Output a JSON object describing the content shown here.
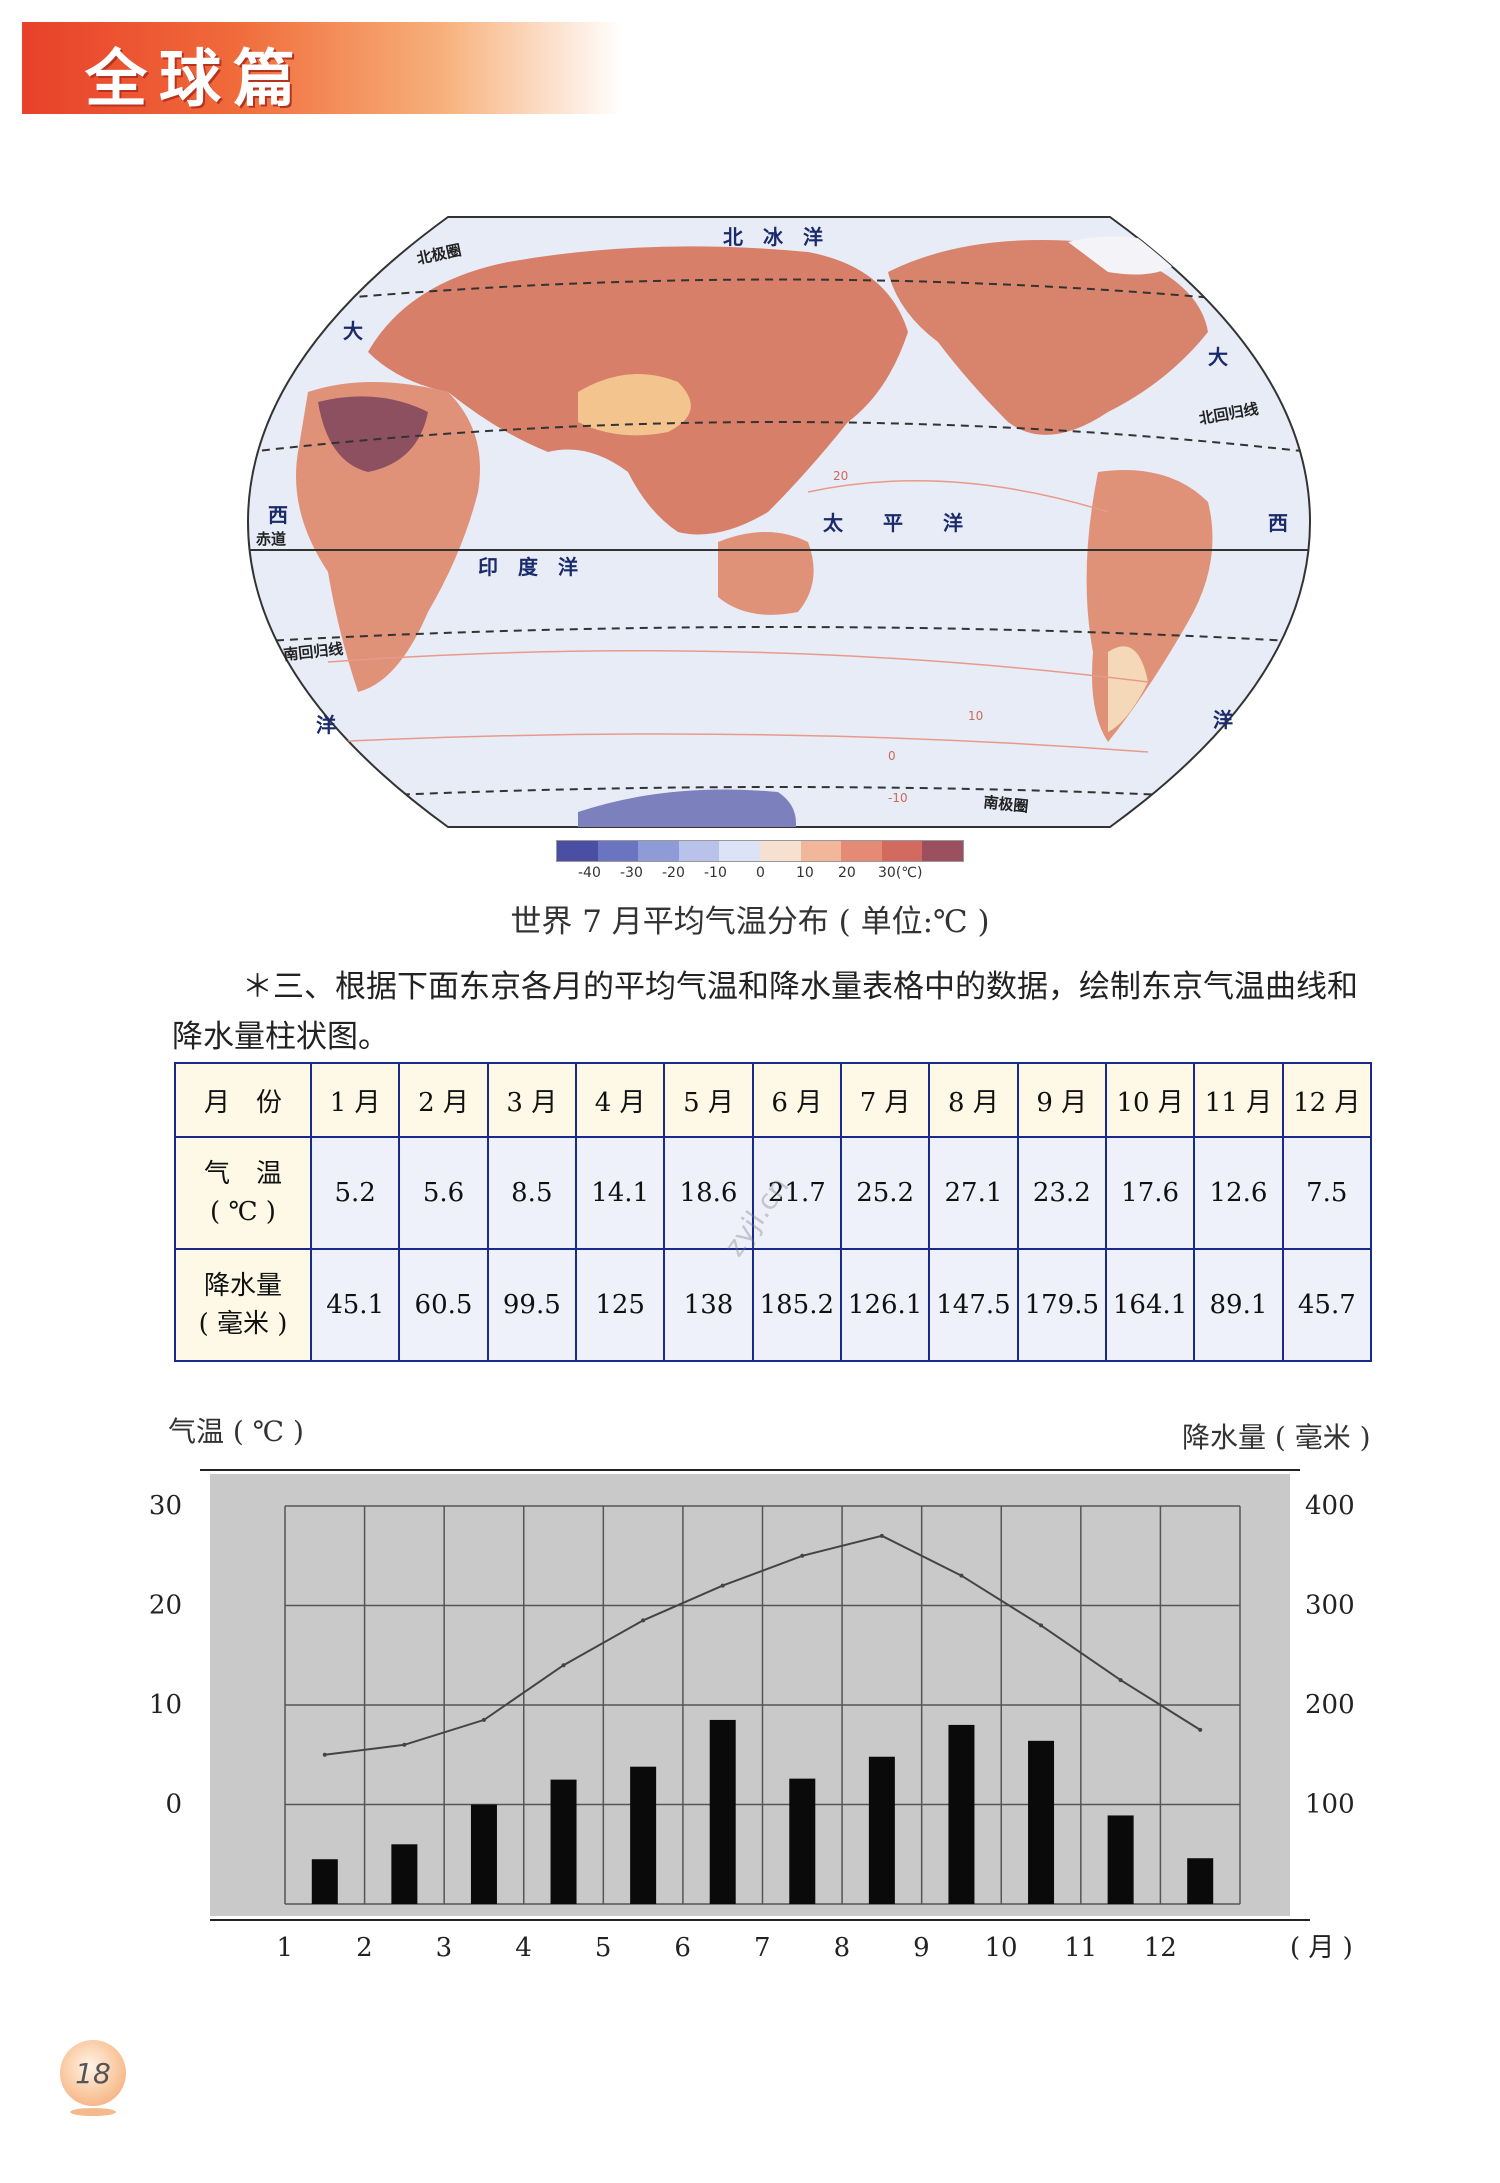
{
  "header": {
    "title": "全球篇"
  },
  "map": {
    "labels": {
      "arctic_ocean": "北　冰　洋",
      "arctic_circle": "北极圈",
      "tropic_cancer": "北回归线",
      "equator": "赤道",
      "tropic_capricorn": "南回归线",
      "antarctic_circle": "南极圈",
      "indian_ocean": "印　度　洋",
      "pacific_ocean": "太　　平　　洋",
      "atlantic_da": "大",
      "atlantic_xi": "西",
      "atlantic_yang": "洋",
      "iso_10": "10",
      "iso_20": "20",
      "iso_0": "0",
      "iso_neg10": "-10"
    },
    "legend": {
      "ticks": [
        "-40",
        "-30",
        "-20",
        "-10",
        "0",
        "10",
        "20",
        "30(℃)"
      ],
      "colors": [
        "#4b4fa3",
        "#6b74c0",
        "#8f9bd6",
        "#b8c2ea",
        "#dde3f6",
        "#f6e0cf",
        "#f2b79a",
        "#e58a74",
        "#d26a60",
        "#9c4f5e"
      ]
    },
    "caption": "世界 7 月平均气温分布 ( 单位:℃ )"
  },
  "task": {
    "text": "＊三、根据下面东京各月的平均气温和降水量表格中的数据，绘制东京气温曲线和降水量柱状图。"
  },
  "table": {
    "month_header": "月　份",
    "months": [
      "1 月",
      "2 月",
      "3 月",
      "4 月",
      "5 月",
      "6 月",
      "7 月",
      "8 月",
      "9 月",
      "10 月",
      "11 月",
      "12 月"
    ],
    "temp_header_line1": "气　温",
    "temp_header_line2": "( ℃ )",
    "temps": [
      "5.2",
      "5.6",
      "8.5",
      "14.1",
      "18.6",
      "21.7",
      "25.2",
      "27.1",
      "23.2",
      "17.6",
      "12.6",
      "7.5"
    ],
    "precip_header_line1": "降水量",
    "precip_header_line2": "( 毫米 )",
    "precip": [
      "45.1",
      "60.5",
      "99.5",
      "125",
      "138",
      "185.2",
      "126.1",
      "147.5",
      "179.5",
      "164.1",
      "89.1",
      "45.7"
    ]
  },
  "watermark": "zyjl.cn",
  "chart_labels": {
    "left_title": "气温 ( ℃ )",
    "right_title": "降水量 ( 毫米 )",
    "x_unit": "( 月 )"
  },
  "chart_data": {
    "type": "bar",
    "x": [
      "1",
      "2",
      "3",
      "4",
      "5",
      "6",
      "7",
      "8",
      "9",
      "10",
      "11",
      "12"
    ],
    "series": [
      {
        "type": "bar",
        "axis": "right",
        "values": [
          45,
          60,
          100,
          125,
          138,
          185,
          126,
          148,
          180,
          164,
          89,
          46
        ]
      },
      {
        "type": "line",
        "axis": "left",
        "values": [
          5,
          6,
          8.5,
          14,
          18.5,
          22,
          25,
          27,
          23,
          18,
          12.5,
          7.5
        ]
      }
    ],
    "y_left": {
      "ticks": [
        "0",
        "10",
        "20",
        "30"
      ],
      "range": [
        -10,
        30
      ]
    },
    "y_right": {
      "ticks": [
        "100",
        "200",
        "300",
        "400"
      ],
      "range": [
        0,
        400
      ]
    },
    "grid": true
  },
  "page": {
    "number": "18"
  }
}
